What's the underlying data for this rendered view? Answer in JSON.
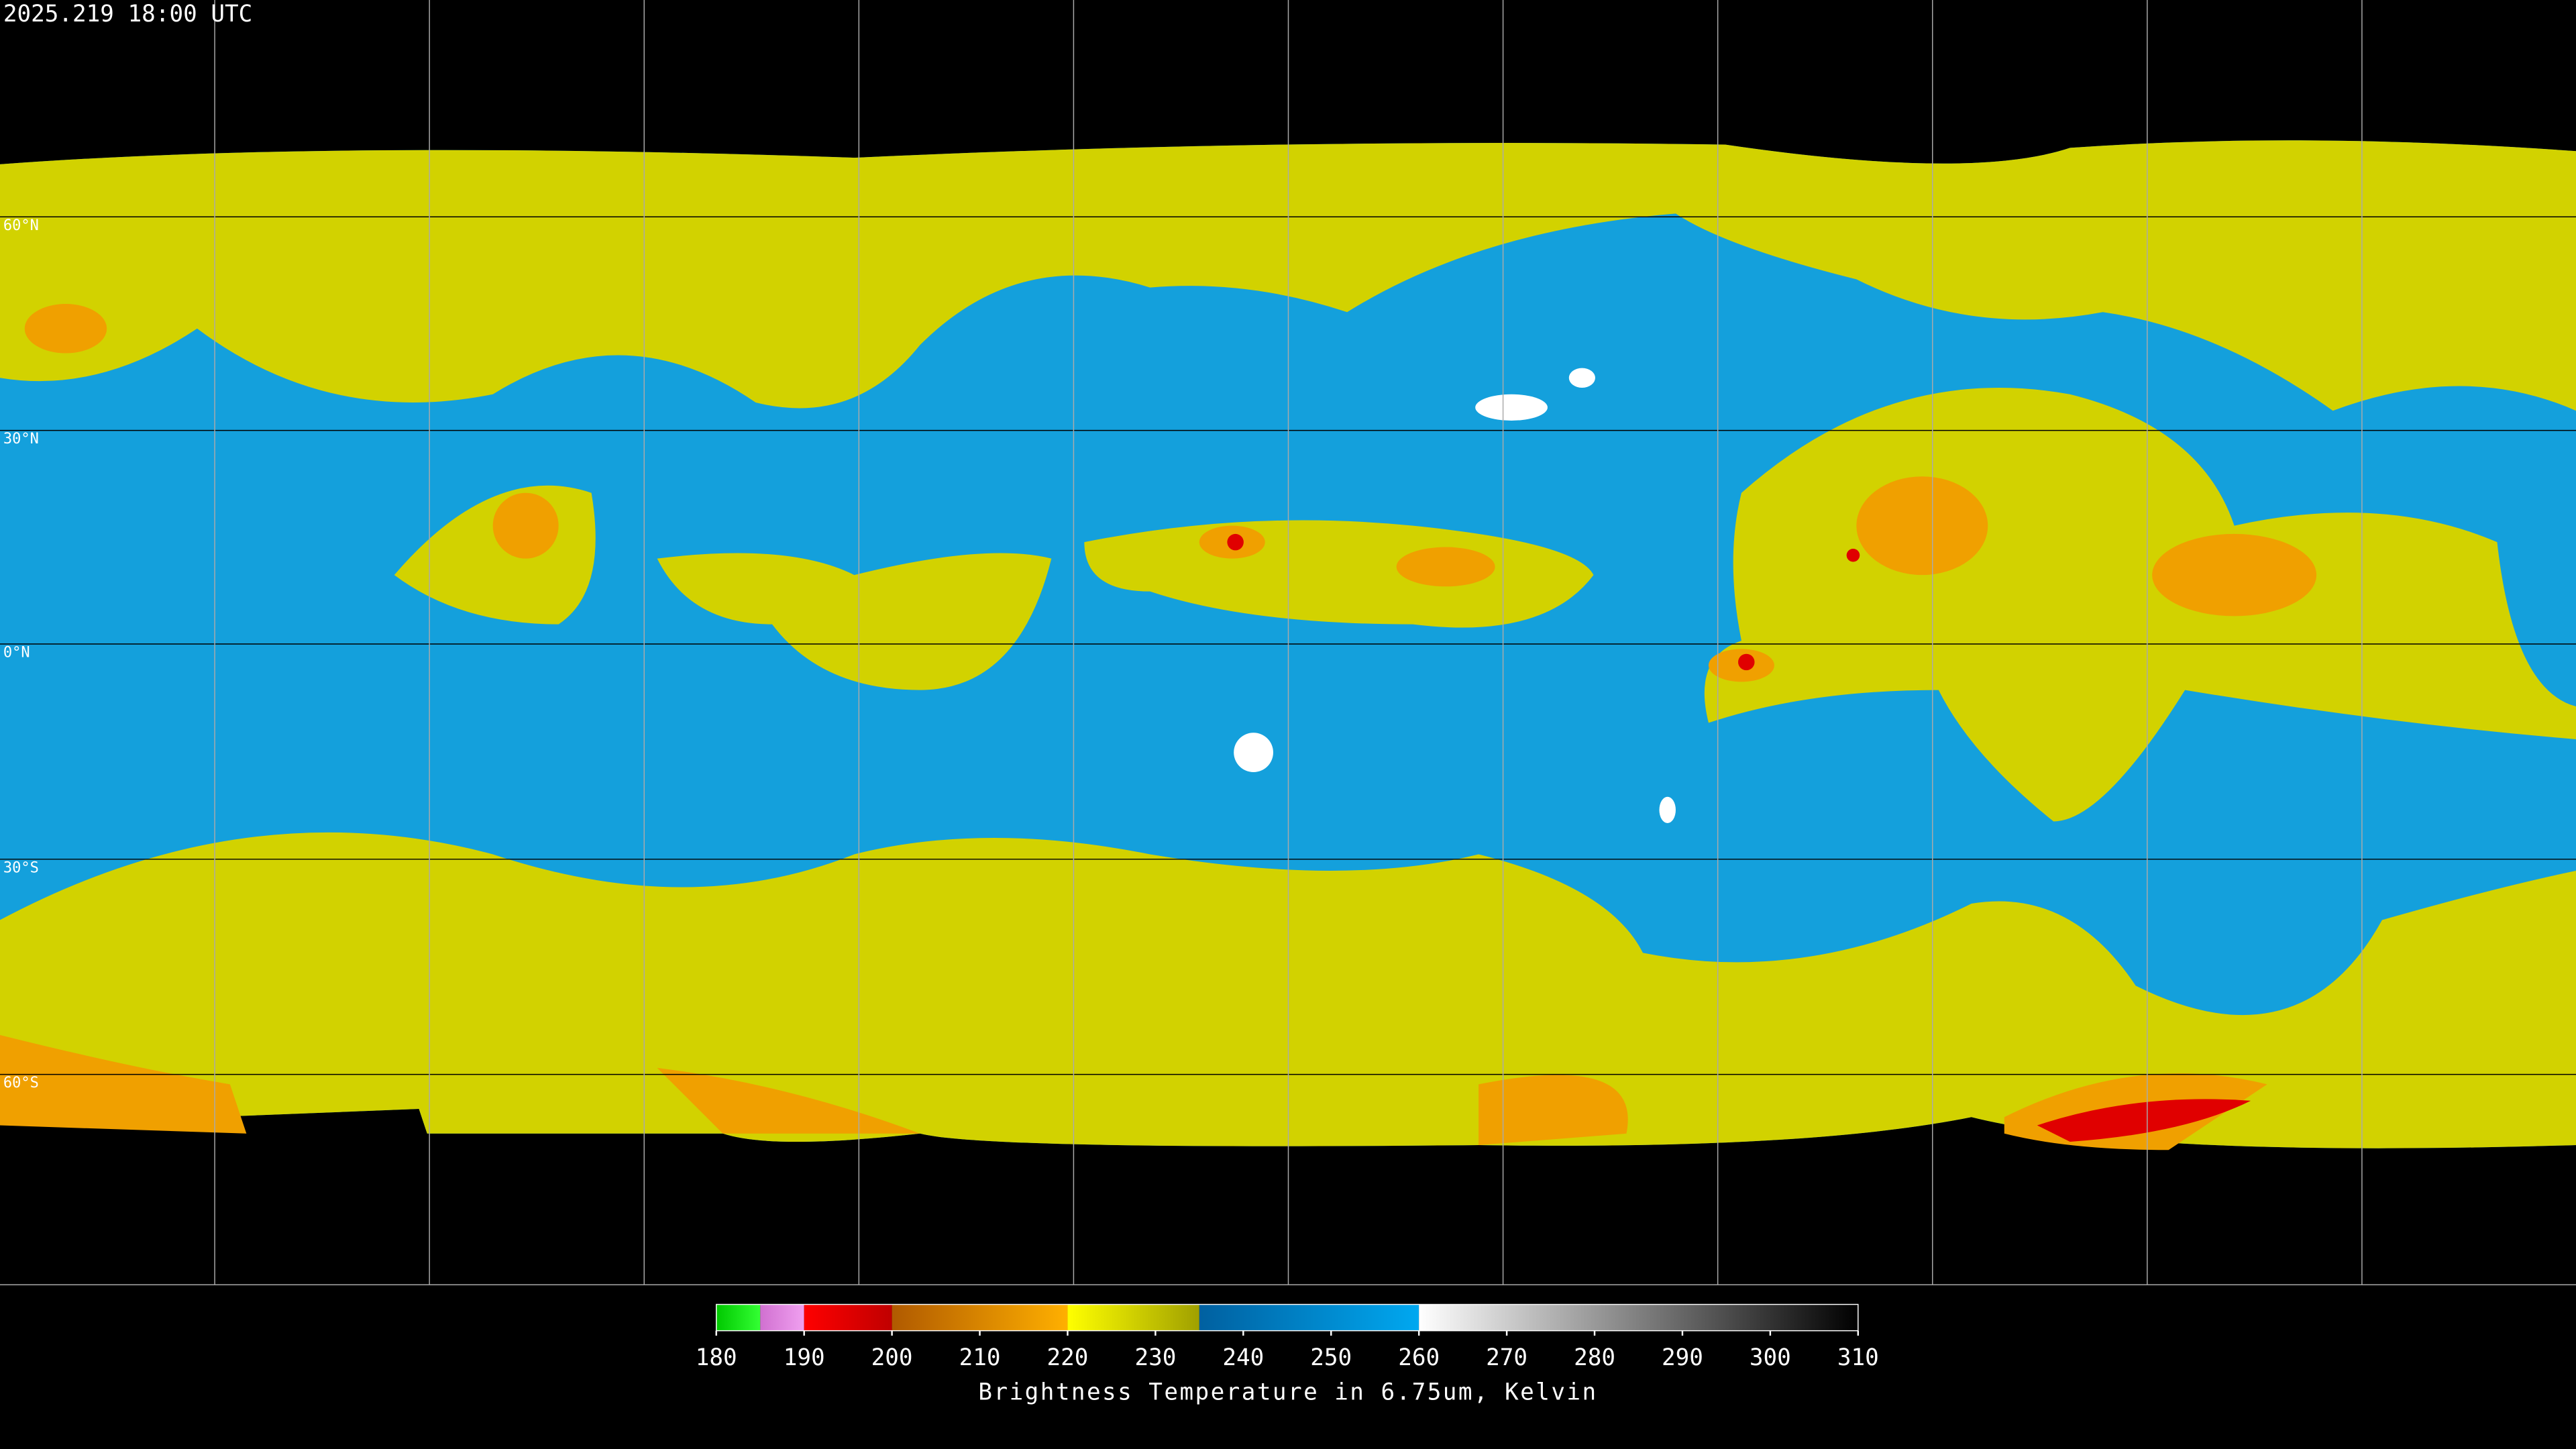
{
  "header": {
    "title": "2025.219 18:00 UTC"
  },
  "latitude_labels": [
    "60°N",
    "30°N",
    "0°N",
    "30°S",
    "60°S"
  ],
  "colorbar": {
    "label": "Brightness Temperature in 6.75um, Kelvin",
    "range": [
      180,
      310
    ],
    "ticks": [
      180,
      190,
      200,
      210,
      220,
      230,
      240,
      250,
      260,
      270,
      280,
      290,
      300,
      310
    ],
    "segments": [
      {
        "from": 180,
        "to": 185,
        "colors": [
          "#00c800",
          "#33ff33"
        ]
      },
      {
        "from": 185,
        "to": 190,
        "colors": [
          "#d070d0",
          "#f0a0f0"
        ]
      },
      {
        "from": 190,
        "to": 200,
        "colors": [
          "#ff0000",
          "#c00000"
        ]
      },
      {
        "from": 200,
        "to": 220,
        "colors": [
          "#b05a00",
          "#ffb000"
        ]
      },
      {
        "from": 220,
        "to": 235,
        "colors": [
          "#ffff00",
          "#a0a000"
        ]
      },
      {
        "from": 235,
        "to": 260,
        "colors": [
          "#0060a0",
          "#00a8f0"
        ]
      },
      {
        "from": 260,
        "to": 310,
        "colors": [
          "#ffffff",
          "#000000"
        ]
      }
    ]
  }
}
